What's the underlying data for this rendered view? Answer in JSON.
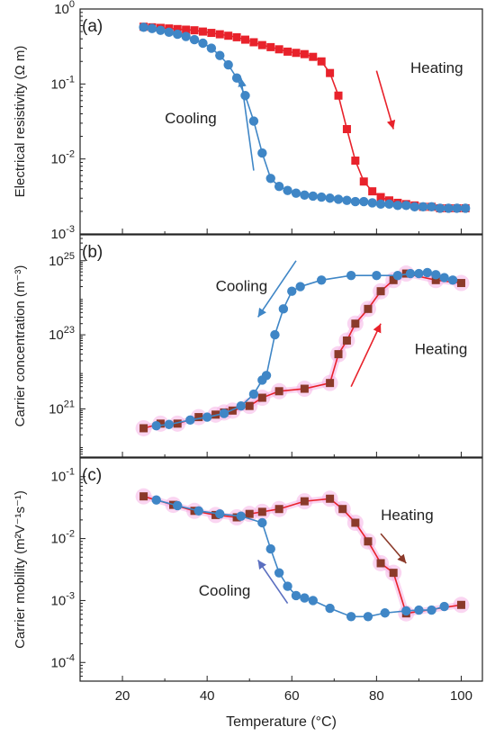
{
  "chart_data": [
    {
      "type": "scatter",
      "panel_label": "(a)",
      "ylabel": "Electrical resistivity (Ω m)",
      "xlabel": "",
      "xlim": [
        10,
        105
      ],
      "ylim": [
        0.001,
        1
      ],
      "yscale": "log",
      "yticks": [
        {
          "value": 1,
          "base": "10",
          "exp": "0"
        },
        {
          "value": 0.1,
          "base": "10",
          "exp": "-1"
        },
        {
          "value": 0.01,
          "base": "10",
          "exp": "-2"
        },
        {
          "value": 0.001,
          "base": "10",
          "exp": "-3"
        }
      ],
      "grid": false,
      "series": [
        {
          "label": "Heating",
          "marker": "square",
          "color": "#e8222b",
          "line_color": "#e8222b",
          "x": [
            25,
            27,
            29,
            31,
            33,
            35,
            37,
            39,
            41,
            43,
            45,
            47,
            49,
            51,
            53,
            55,
            57,
            59,
            61,
            63,
            65,
            67,
            69,
            71,
            73,
            75,
            77,
            79,
            81,
            83,
            85,
            87,
            89,
            91,
            93,
            95,
            97,
            99,
            101
          ],
          "y": [
            0.58,
            0.57,
            0.56,
            0.55,
            0.54,
            0.53,
            0.52,
            0.5,
            0.48,
            0.46,
            0.44,
            0.42,
            0.39,
            0.36,
            0.33,
            0.31,
            0.29,
            0.27,
            0.26,
            0.25,
            0.23,
            0.2,
            0.14,
            0.07,
            0.025,
            0.0095,
            0.005,
            0.0037,
            0.0031,
            0.0028,
            0.0026,
            0.0025,
            0.0024,
            0.0023,
            0.0023,
            0.0022,
            0.0022,
            0.0022,
            0.0022
          ]
        },
        {
          "label": "Cooling",
          "marker": "circle",
          "color": "#3f86c6",
          "line_color": "#3f86c6",
          "x": [
            25,
            27,
            29,
            31,
            33,
            35,
            37,
            39,
            41,
            43,
            45,
            47,
            49,
            51,
            53,
            55,
            57,
            59,
            61,
            63,
            65,
            67,
            69,
            71,
            73,
            75,
            77,
            79,
            81,
            83,
            85,
            87,
            89,
            91,
            93,
            95,
            97,
            99,
            101
          ],
          "y": [
            0.57,
            0.55,
            0.52,
            0.49,
            0.46,
            0.43,
            0.39,
            0.35,
            0.3,
            0.24,
            0.18,
            0.12,
            0.07,
            0.032,
            0.012,
            0.0055,
            0.0043,
            0.0038,
            0.0035,
            0.0033,
            0.0032,
            0.0031,
            0.003,
            0.0029,
            0.0028,
            0.0027,
            0.0027,
            0.0026,
            0.0025,
            0.0025,
            0.0024,
            0.0024,
            0.0023,
            0.0023,
            0.0023,
            0.0022,
            0.0022,
            0.0022,
            0.0022
          ]
        }
      ],
      "annotations": [
        {
          "text": "Heating",
          "color": "#e8222b",
          "x": 88,
          "y": 0.14
        },
        {
          "text": "Cooling",
          "color": "#3f86c6",
          "x": 30,
          "y": 0.03
        }
      ],
      "arrows": [
        {
          "color": "#e8222b",
          "from": [
            80,
            0.15
          ],
          "to": [
            84,
            0.025
          ]
        },
        {
          "color": "#3f86c6",
          "from": [
            51,
            0.007
          ],
          "to": [
            48,
            0.12
          ]
        }
      ]
    },
    {
      "type": "line",
      "panel_label": "(b)",
      "ylabel": "Carrier concentration (m⁻³)",
      "xlabel": "",
      "xlim": [
        10,
        105
      ],
      "ylim": [
        5e+19,
        5e+25
      ],
      "yscale": "log",
      "yticks": [
        {
          "value": 1e+25,
          "base": "10",
          "exp": "25"
        },
        {
          "value": 1e+23,
          "base": "10",
          "exp": "23"
        },
        {
          "value": 1e+21,
          "base": "10",
          "exp": "21"
        }
      ],
      "grid": false,
      "series": [
        {
          "label": "Heating",
          "marker": "square",
          "color": "#8b3a2a",
          "line_color": "#e8222b",
          "halo": "#f5b3e6",
          "x": [
            25,
            29,
            33,
            38,
            42,
            44,
            46,
            50,
            53,
            57,
            63,
            69,
            71,
            73,
            75,
            78,
            81,
            84,
            87,
            94,
            100
          ],
          "y": [
            3e+20,
            4e+20,
            4e+20,
            6e+20,
            7e+20,
            8e+20,
            9e+20,
            1.2e+21,
            2e+21,
            3e+21,
            3.5e+21,
            5e+21,
            3e+22,
            7e+22,
            2e+23,
            5e+23,
            1.5e+24,
            3e+24,
            4.5e+24,
            3e+24,
            2.5e+24
          ]
        },
        {
          "label": "Cooling",
          "marker": "circle",
          "color": "#3f86c6",
          "line_color": "#3f86c6",
          "x": [
            28,
            31,
            36,
            40,
            44,
            48,
            51,
            53,
            54,
            56,
            58,
            60,
            62,
            67,
            74,
            80,
            85,
            88,
            90,
            92,
            94,
            96,
            98
          ],
          "y": [
            3.5e+20,
            3.8e+20,
            5e+20,
            6e+20,
            7.5e+20,
            1.2e+21,
            2.5e+21,
            6e+21,
            8e+21,
            1e+23,
            5e+23,
            1.5e+24,
            2e+24,
            3e+24,
            4e+24,
            4e+24,
            4e+24,
            4.5e+24,
            4.5e+24,
            4.8e+24,
            4.2e+24,
            3.5e+24,
            3e+24
          ]
        }
      ],
      "annotations": [
        {
          "text": "Cooling",
          "color": "#3f86c6",
          "x": 42,
          "y": 1.5e+24
        },
        {
          "text": "Heating",
          "color": "#e8222b",
          "x": 89,
          "y": 3e+22
        }
      ],
      "arrows": [
        {
          "color": "#3f86c6",
          "from": [
            61,
            1e+25
          ],
          "to": [
            52,
            3e+23
          ]
        },
        {
          "color": "#e8222b",
          "from": [
            74,
            4e+21
          ],
          "to": [
            81,
            2e+23
          ]
        }
      ]
    },
    {
      "type": "line",
      "panel_label": "(c)",
      "ylabel": "Carrier mobility (m²V⁻¹s⁻¹)",
      "xlabel": "Temperature (°C)",
      "xlim": [
        10,
        105
      ],
      "ylim": [
        5e-05,
        0.2
      ],
      "yscale": "log",
      "xticks": [
        20,
        40,
        60,
        80,
        100
      ],
      "yticks": [
        {
          "value": 0.1,
          "base": "10",
          "exp": "-1"
        },
        {
          "value": 0.01,
          "base": "10",
          "exp": "-2"
        },
        {
          "value": 0.001,
          "base": "10",
          "exp": "-3"
        },
        {
          "value": 0.0001,
          "base": "10",
          "exp": "-4"
        }
      ],
      "grid": false,
      "series": [
        {
          "label": "Heating",
          "marker": "square",
          "color": "#8b3a2a",
          "line_color": "#e8222b",
          "halo": "#f5b3e6",
          "x": [
            25,
            32,
            37,
            42,
            47,
            50,
            53,
            57,
            63,
            69,
            72,
            75,
            78,
            81,
            84,
            87,
            100
          ],
          "y": [
            0.048,
            0.035,
            0.028,
            0.024,
            0.022,
            0.025,
            0.027,
            0.03,
            0.04,
            0.044,
            0.03,
            0.018,
            0.009,
            0.004,
            0.0028,
            0.00062,
            0.00085
          ]
        },
        {
          "label": "Cooling",
          "marker": "circle",
          "color": "#3f86c6",
          "line_color": "#3f86c6",
          "x": [
            28,
            33,
            38,
            43,
            48,
            53,
            55,
            57,
            59,
            61,
            63,
            65,
            69,
            74,
            78,
            82,
            87,
            90,
            93,
            96
          ],
          "y": [
            0.042,
            0.034,
            0.028,
            0.025,
            0.023,
            0.018,
            0.0068,
            0.0028,
            0.0017,
            0.0012,
            0.0011,
            0.001,
            0.00075,
            0.00055,
            0.00055,
            0.00063,
            0.00068,
            0.0007,
            0.0007,
            0.0008
          ]
        }
      ],
      "annotations": [
        {
          "text": "Heating",
          "color": "#8b3a2a",
          "x": 81,
          "y": 0.02
        },
        {
          "text": "Cooling",
          "color": "#3f86c6",
          "x": 38,
          "y": 0.0012
        }
      ],
      "arrows": [
        {
          "color": "#8b3a2a",
          "from": [
            81,
            0.012
          ],
          "to": [
            87,
            0.004
          ]
        },
        {
          "color": "#5b6fc0",
          "from": [
            59,
            0.0009
          ],
          "to": [
            52,
            0.0045
          ]
        }
      ]
    }
  ]
}
